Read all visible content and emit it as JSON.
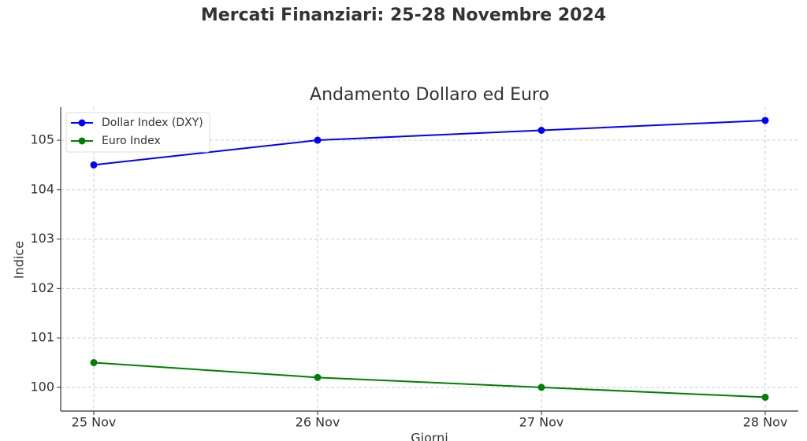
{
  "chart_data": {
    "type": "line",
    "suptitle": "Mercati Finanziari: 25-28 Novembre 2024",
    "title": "Andamento Dollaro ed Euro",
    "x_label": "Giorni",
    "y_label": "Indice",
    "categories": [
      "25 Nov",
      "26 Nov",
      "27 Nov",
      "28 Nov"
    ],
    "series": [
      {
        "name": "Dollar Index (DXY)",
        "color": "#0000ff",
        "values": [
          104.5,
          105.0,
          105.2,
          105.4
        ]
      },
      {
        "name": "Euro Index",
        "color": "#008000",
        "values": [
          100.5,
          100.2,
          100.0,
          99.8
        ]
      }
    ],
    "ylim": [
      99.52,
      105.67
    ],
    "yticks": [
      100,
      101,
      102,
      103,
      104,
      105
    ],
    "grid": true,
    "legend": "upper left"
  }
}
